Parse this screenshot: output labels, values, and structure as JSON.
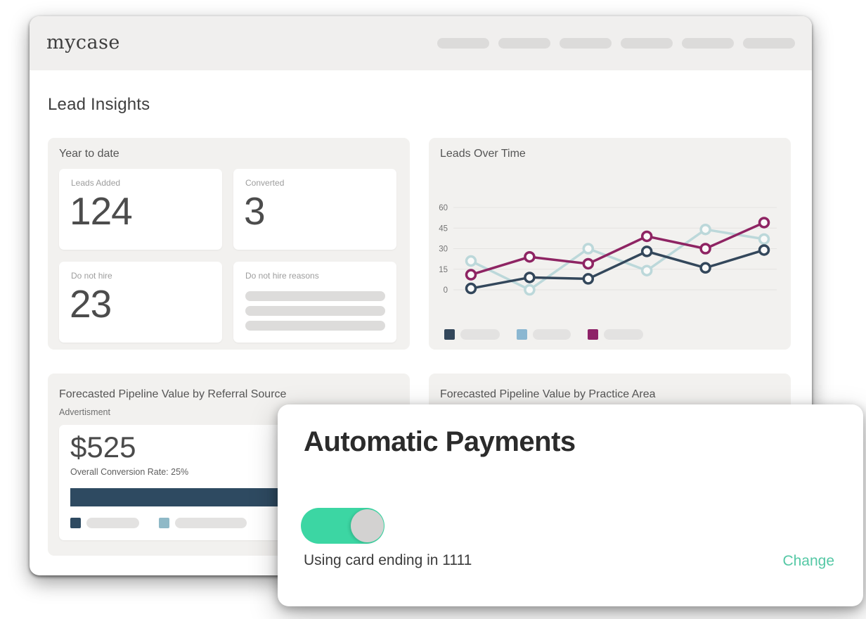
{
  "header": {
    "logo": "mycase",
    "nav_pills": 6
  },
  "page": {
    "title": "Lead Insights"
  },
  "year_to_date": {
    "title": "Year to date",
    "metrics": [
      {
        "label": "Leads Added",
        "value": "124"
      },
      {
        "label": "Converted",
        "value": "3"
      },
      {
        "label": "Do not hire",
        "value": "23"
      },
      {
        "label": "Do not hire reasons",
        "value": "",
        "placeholder_bars": 3
      }
    ]
  },
  "referral_source": {
    "title": "Forecasted Pipeline Value by Referral Source",
    "category_label": "Advertisment",
    "pipeline_value": "$525",
    "conversion_text": "Overall Conversion Rate: 25%",
    "bar_color": "#2e4a61",
    "legend_colors": [
      "#2e4a61",
      "#8fb9c7"
    ],
    "legend_pill_widths": [
      75,
      102
    ]
  },
  "practice_area": {
    "title": "Forecasted Pipeline Value by Practice Area"
  },
  "modal": {
    "title": "Automatic Payments",
    "toggle_state": "on",
    "toggle_color": "#3cd6a3",
    "card_text": "Using card ending in 1111",
    "change_label": "Change",
    "change_color": "#55c8a5"
  },
  "chart_data": {
    "type": "line",
    "title": "Leads Over Time",
    "x_points": 6,
    "x_labels_visible": false,
    "yticks": [
      0,
      15,
      30,
      45,
      60
    ],
    "ylim": [
      0,
      60
    ],
    "grid": true,
    "legend_position": "bottom",
    "series": [
      {
        "name": "pale-teal-series",
        "line_color": "#bcd8da",
        "legend_color": "#8bb7d1",
        "values": [
          21,
          0,
          30,
          14,
          44,
          37
        ]
      },
      {
        "name": "burgundy-series",
        "line_color": "#8e2463",
        "legend_color": "#8e2268",
        "values": [
          11,
          24,
          19,
          39,
          30,
          49
        ]
      },
      {
        "name": "navy-series",
        "line_color": "#33475b",
        "legend_color": "#33475b",
        "values": [
          1,
          9,
          8,
          28,
          16,
          29
        ]
      }
    ],
    "legend_order": [
      2,
      0,
      1
    ],
    "legend_pill_widths": [
      56,
      54,
      56
    ]
  }
}
